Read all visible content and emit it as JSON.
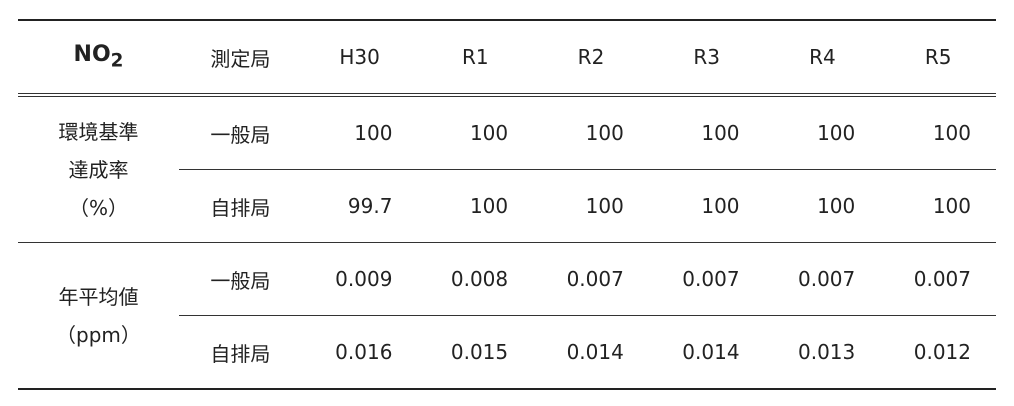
{
  "header": {
    "pollutant": "NO",
    "pollutant_sub": "2",
    "columns": [
      "測定局",
      "H30",
      "R1",
      "R2",
      "R3",
      "R4",
      "R5"
    ]
  },
  "groups": [
    {
      "label_lines": [
        "環境基準",
        "達成率",
        "（%）"
      ],
      "rows": [
        {
          "station": "一般局",
          "values": [
            100,
            100,
            100,
            100,
            100,
            100
          ]
        },
        {
          "station": "自排局",
          "values": [
            99.7,
            100,
            100,
            100,
            100,
            100
          ]
        }
      ]
    },
    {
      "label_lines": [
        "年平均値",
        "（ppm）"
      ],
      "rows": [
        {
          "station": "一般局",
          "values": [
            0.009,
            0.008,
            0.007,
            0.007,
            0.007,
            0.007
          ]
        },
        {
          "station": "自排局",
          "values": [
            0.016,
            0.015,
            0.014,
            0.014,
            0.013,
            0.012
          ]
        }
      ]
    }
  ]
}
